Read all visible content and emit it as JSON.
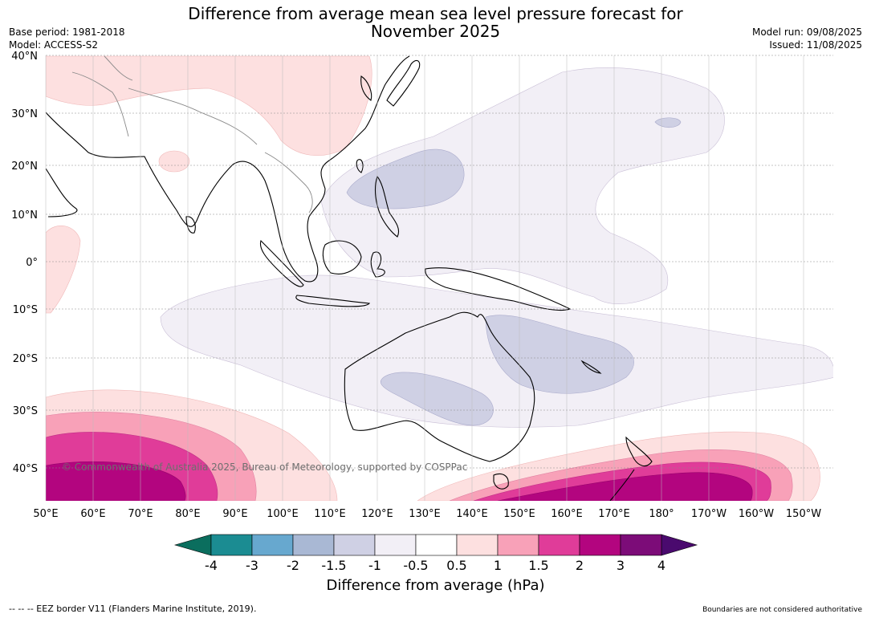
{
  "header": {
    "title_line1": "Difference from average mean sea level pressure forecast for",
    "title_line2": "November 2025",
    "base_period": "Base period: 1981-2018",
    "model": "Model: ACCESS-S2",
    "model_run": "Model run: 09/08/2025",
    "issued": "Issued: 11/08/2025"
  },
  "map": {
    "lat_labels": [
      "40°N",
      "30°N",
      "20°N",
      "10°N",
      "0°",
      "10°S",
      "20°S",
      "30°S",
      "40°S"
    ],
    "lon_labels": [
      "50°E",
      "60°E",
      "70°E",
      "80°E",
      "90°E",
      "100°E",
      "110°E",
      "120°E",
      "130°E",
      "140°E",
      "150°E",
      "160°E",
      "170°E",
      "180°",
      "170°W",
      "160°W",
      "150°W"
    ],
    "copyright": "© Commonwealth of Australia 2025, Bureau of Meteorology, supported by COSPPac"
  },
  "colorbar": {
    "labels": [
      "-4",
      "-3",
      "-2",
      "-1.5",
      "-1",
      "-0.5",
      "0.5",
      "1",
      "1.5",
      "2",
      "3",
      "4"
    ],
    "colors": [
      "#1b8c92",
      "#67a8cf",
      "#a9b8d4",
      "#cfd0e4",
      "#f2eff6",
      "#ffffff",
      "#fde0e0",
      "#f8a1b8",
      "#e03c99",
      "#b3057f",
      "#7c0c78"
    ],
    "low_extend_color": "#0b6e5e",
    "high_extend_color": "#4a0a6e",
    "title": "Difference from average (hPa)"
  },
  "footer": {
    "eez": "--  --  -- EEZ border V11 (Flanders Marine Institute, 2019).",
    "disclaimer": "Boundaries are not considered authoritative"
  }
}
